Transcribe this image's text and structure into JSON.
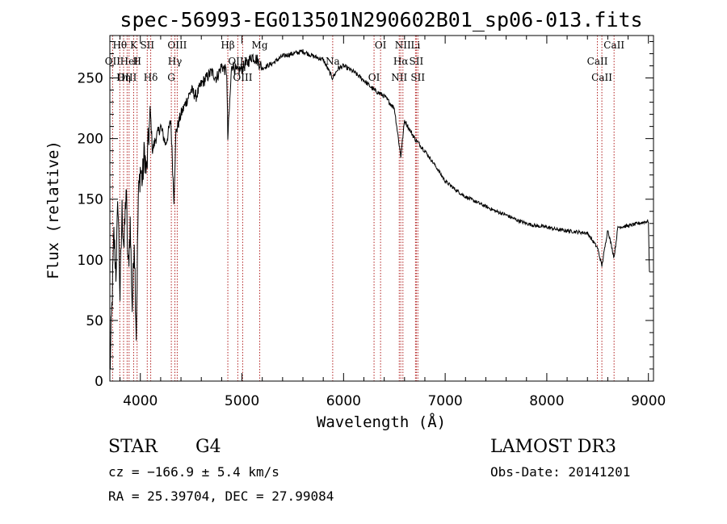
{
  "chart_data": {
    "type": "line",
    "title": "spec-56993-EG013501N290602B01_sp06-013.fits",
    "xlabel": "Wavelength (Å)",
    "ylabel": "Flux (relative)",
    "xlim": [
      3700,
      9050
    ],
    "ylim": [
      0,
      285
    ],
    "xticks": [
      4000,
      5000,
      6000,
      7000,
      8000,
      9000
    ],
    "yticks": [
      0,
      50,
      100,
      150,
      200,
      250
    ],
    "grid": false,
    "series": [
      {
        "values_x": [
          3700,
          3720,
          3740,
          3760,
          3780,
          3800,
          3820,
          3840,
          3860,
          3880,
          3900,
          3920,
          3940,
          3960,
          3980,
          4000,
          4020,
          4040,
          4060,
          4080,
          4100,
          4120,
          4150,
          4200,
          4250,
          4300,
          4330,
          4350,
          4400,
          4450,
          4500,
          4550,
          4600,
          4650,
          4700,
          4750,
          4800,
          4850,
          4861,
          4900,
          4950,
          5000,
          5050,
          5100,
          5150,
          5200,
          5300,
          5400,
          5500,
          5600,
          5700,
          5800,
          5890,
          5950,
          6000,
          6100,
          6200,
          6300,
          6400,
          6500,
          6563,
          6600,
          6700,
          6800,
          6900,
          7000,
          7100,
          7200,
          7300,
          7400,
          7500,
          7600,
          7700,
          7800,
          7900,
          8000,
          8100,
          8200,
          8300,
          8400,
          8498,
          8542,
          8600,
          8662,
          8700,
          8800,
          8900,
          9000,
          9010
        ],
        "values_y": [
          5,
          60,
          120,
          90,
          150,
          70,
          140,
          110,
          160,
          90,
          130,
          60,
          120,
          40,
          150,
          175,
          165,
          190,
          170,
          200,
          220,
          190,
          200,
          210,
          195,
          215,
          150,
          205,
          220,
          230,
          240,
          235,
          245,
          250,
          255,
          250,
          260,
          255,
          200,
          262,
          255,
          258,
          262,
          268,
          265,
          258,
          262,
          268,
          270,
          272,
          268,
          265,
          250,
          258,
          260,
          255,
          248,
          240,
          235,
          225,
          185,
          215,
          200,
          190,
          178,
          165,
          158,
          152,
          148,
          144,
          140,
          137,
          133,
          130,
          128,
          127,
          125,
          124,
          123,
          122,
          110,
          95,
          125,
          102,
          127,
          128,
          130,
          132,
          90
        ]
      }
    ],
    "spectral_lines": [
      {
        "label": "Hθ",
        "w": 3798
      },
      {
        "label": "OII",
        "w": 3727
      },
      {
        "label": "OIII",
        "w": 3870
      },
      {
        "label": "K",
        "w": 3934
      },
      {
        "label": "HeI",
        "w": 3889
      },
      {
        "label": "Hη",
        "w": 3835
      },
      {
        "label": "SII",
        "w": 4068
      },
      {
        "label": "H",
        "w": 3968
      },
      {
        "label": "Hδ",
        "w": 4102
      },
      {
        "label": "OIII",
        "w": 4363
      },
      {
        "label": "Hγ",
        "w": 4340
      },
      {
        "label": "G",
        "w": 4305
      },
      {
        "label": "Hβ",
        "w": 4861
      },
      {
        "label": "OIII",
        "w": 4959
      },
      {
        "label": "OIII",
        "w": 5007
      },
      {
        "label": "Mg",
        "w": 5175
      },
      {
        "label": "Na",
        "w": 5893
      },
      {
        "label": "OI",
        "w": 6300
      },
      {
        "label": "OI",
        "w": 6364
      },
      {
        "label": "Hα",
        "w": 6563
      },
      {
        "label": "NII",
        "w": 6548
      },
      {
        "label": "NII",
        "w": 6584
      },
      {
        "label": "SII",
        "w": 6716
      },
      {
        "label": "SII",
        "w": 6731
      },
      {
        "label": "Li",
        "w": 6708
      },
      {
        "label": "CaII",
        "w": 8498
      },
      {
        "label": "CaII",
        "w": 8542
      },
      {
        "label": "CaII",
        "w": 8662
      }
    ]
  },
  "footer": {
    "class": "STAR",
    "subclass": "G4",
    "cz": "cz = −166.9 ± 5.4 km/s",
    "radec": "RA =  25.39704, DEC =  27.99084",
    "survey": "LAMOST DR3",
    "obsdate": "Obs-Date: 20141201"
  },
  "colors": {
    "spectrum": "#000000",
    "line_markers": "#b22222"
  }
}
